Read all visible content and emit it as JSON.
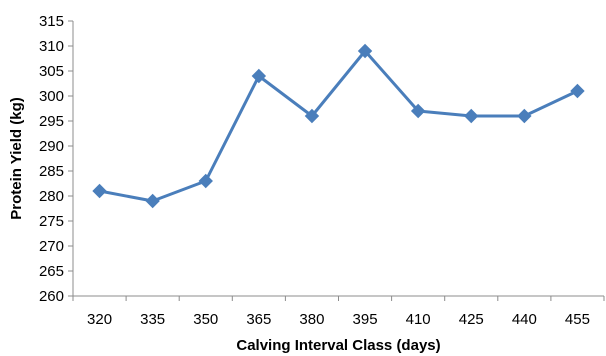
{
  "chart_data": {
    "type": "line",
    "xlabel": "Calving Interval Class (days)",
    "ylabel": "Protein Yield (kg)",
    "categories": [
      "320",
      "335",
      "350",
      "365",
      "380",
      "395",
      "410",
      "425",
      "440",
      "455"
    ],
    "series": [
      {
        "values": [
          281,
          279,
          283,
          304,
          296,
          309,
          297,
          296,
          296,
          301
        ]
      }
    ],
    "ylim": [
      260,
      315
    ],
    "yticks": [
      260,
      265,
      270,
      275,
      280,
      285,
      290,
      295,
      300,
      305,
      310,
      315
    ],
    "grid": false,
    "legend": "none",
    "marker": "diamond",
    "colors": {
      "series": "#4a7ebb",
      "axis": "#8c8c8c",
      "text": "#000000"
    }
  }
}
